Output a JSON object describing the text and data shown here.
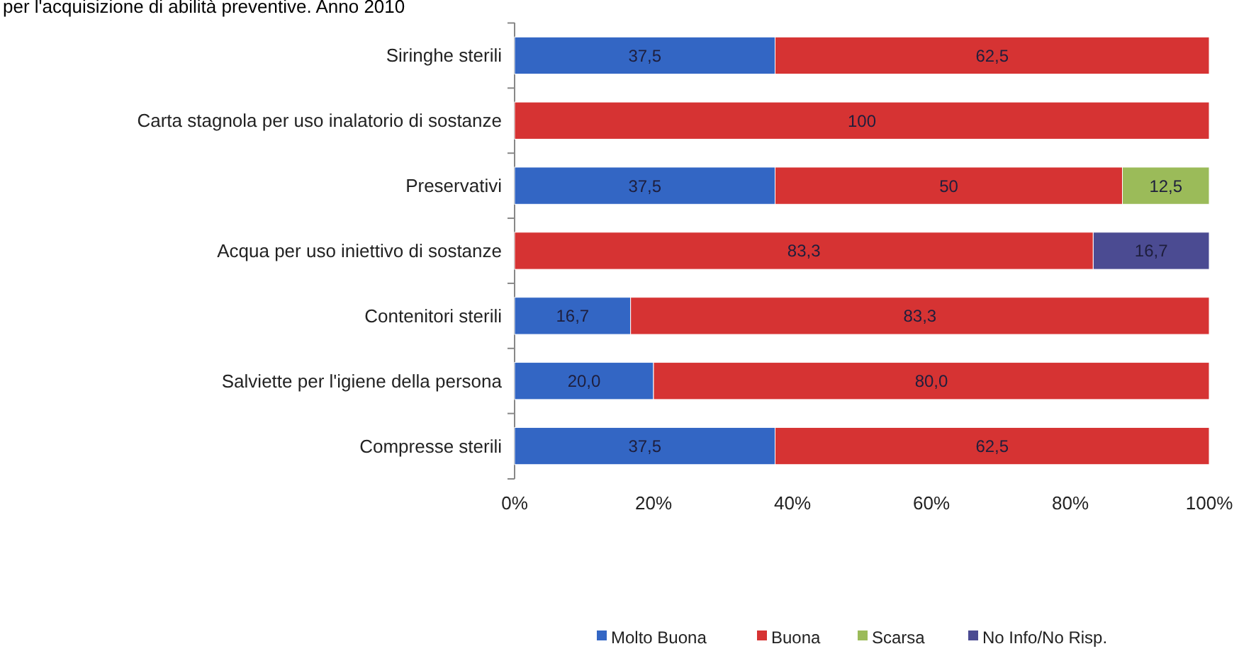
{
  "chart_data": {
    "type": "bar",
    "orientation": "horizontal",
    "stacked": true,
    "title": "per l'acquisizione di abilità preventive. Anno 2010",
    "categories": [
      "Siringhe sterili",
      "Carta stagnola per uso inalatorio di sostanze",
      "Preservativi",
      "Acqua per uso iniettivo di sostanze",
      "Contenitori sterili",
      "Salviette per l'igiene della persona",
      "Compresse sterili"
    ],
    "series": [
      {
        "name": "Molto Buona",
        "color": "#3366c4",
        "values": [
          37.5,
          null,
          37.5,
          null,
          16.7,
          20.0,
          37.5
        ],
        "value_labels": [
          "37,5",
          null,
          "37,5",
          null,
          "16,7",
          "20,0",
          "37,5"
        ]
      },
      {
        "name": "Buona",
        "color": "#d63333",
        "values": [
          62.5,
          100,
          50,
          83.3,
          83.3,
          80.0,
          62.5
        ],
        "value_labels": [
          "62,5",
          "100",
          "50",
          "83,3",
          "83,3",
          "80,0",
          "62,5"
        ]
      },
      {
        "name": "Scarsa",
        "color": "#9bbb59",
        "values": [
          null,
          null,
          12.5,
          null,
          null,
          null,
          null
        ],
        "value_labels": [
          null,
          null,
          "12,5",
          null,
          null,
          null,
          null
        ]
      },
      {
        "name": "No Info/No Risp.",
        "color": "#4b4b92",
        "values": [
          null,
          null,
          null,
          16.7,
          null,
          null,
          null
        ],
        "value_labels": [
          null,
          null,
          null,
          "16,7",
          null,
          null,
          null
        ]
      }
    ],
    "xlim": [
      0,
      100
    ],
    "xticks": [
      {
        "value": 0,
        "label": "0%"
      },
      {
        "value": 20,
        "label": "20%"
      },
      {
        "value": 40,
        "label": "40%"
      },
      {
        "value": 60,
        "label": "60%"
      },
      {
        "value": 80,
        "label": "80%"
      },
      {
        "value": 100,
        "label": "100%"
      }
    ],
    "grid": false,
    "legend": "bottom"
  }
}
